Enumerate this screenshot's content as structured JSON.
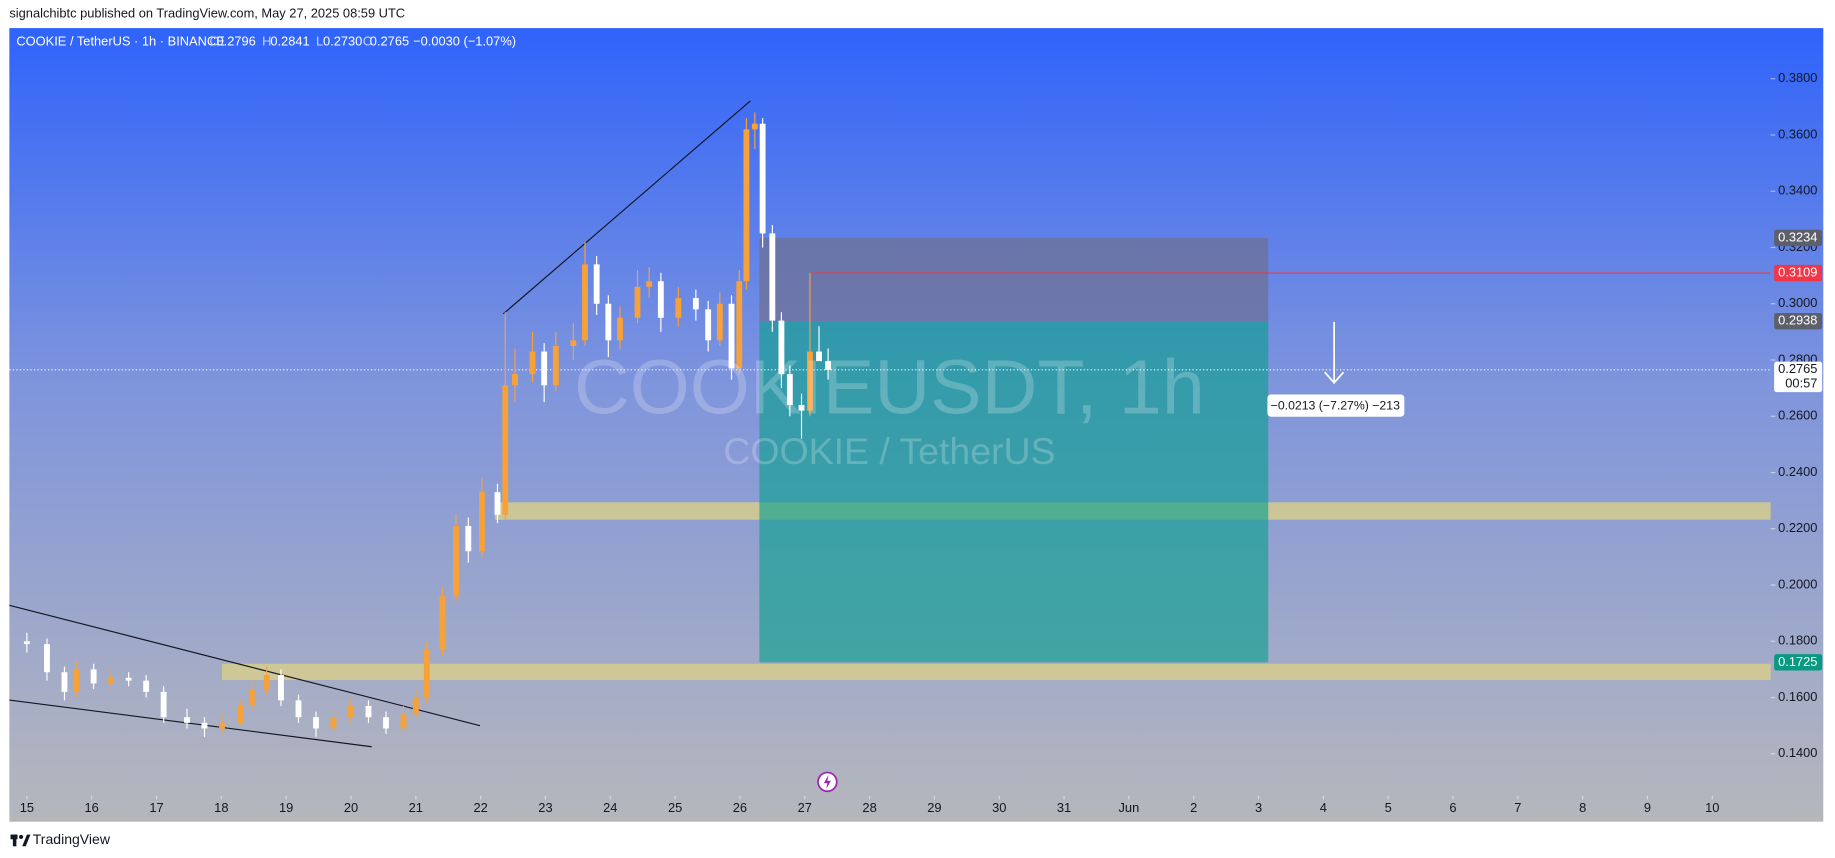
{
  "header": {
    "published": "signalchibtc published on TradingView.com, May 27, 2025 08:59 UTC"
  },
  "legend": {
    "symbol": "COOKIE / TetherUS · 1h · BINANCE",
    "o_label": "O",
    "open": "0.2796",
    "h_label": "H",
    "high": "0.2841",
    "l_label": "L",
    "low": "0.2730",
    "c_label": "C",
    "close": "0.2765",
    "change": "−0.0030 (−1.07%)"
  },
  "watermark": {
    "title": "COOKIEUSDT, 1h",
    "subtitle": "COOKIE / TetherUS"
  },
  "footer": {
    "brand": "TradingView"
  },
  "chart_data": {
    "type": "candlestick",
    "xlim": [
      -0.27,
      26.9
    ],
    "ylim": [
      0.125,
      0.398
    ],
    "xticks": [
      {
        "value": 0,
        "label": "15"
      },
      {
        "value": 1,
        "label": "16"
      },
      {
        "value": 2,
        "label": "17"
      },
      {
        "value": 3,
        "label": "18"
      },
      {
        "value": 4,
        "label": "19"
      },
      {
        "value": 5,
        "label": "20"
      },
      {
        "value": 6,
        "label": "21"
      },
      {
        "value": 7,
        "label": "22"
      },
      {
        "value": 8,
        "label": "23"
      },
      {
        "value": 9,
        "label": "24"
      },
      {
        "value": 10,
        "label": "25"
      },
      {
        "value": 11,
        "label": "26"
      },
      {
        "value": 12,
        "label": "27"
      },
      {
        "value": 13,
        "label": "28"
      },
      {
        "value": 14,
        "label": "29"
      },
      {
        "value": 15,
        "label": "30"
      },
      {
        "value": 16,
        "label": "31"
      },
      {
        "value": 17,
        "label": "Jun"
      },
      {
        "value": 18,
        "label": "2"
      },
      {
        "value": 19,
        "label": "3"
      },
      {
        "value": 20,
        "label": "4"
      },
      {
        "value": 21,
        "label": "5"
      },
      {
        "value": 22,
        "label": "6"
      },
      {
        "value": 23,
        "label": "7"
      },
      {
        "value": 24,
        "label": "8"
      },
      {
        "value": 25,
        "label": "9"
      },
      {
        "value": 26,
        "label": "10"
      }
    ],
    "yticks": [
      {
        "value": 0.14,
        "label": "0.1400"
      },
      {
        "value": 0.16,
        "label": "0.1600"
      },
      {
        "value": 0.18,
        "label": "0.1800"
      },
      {
        "value": 0.2,
        "label": "0.2000"
      },
      {
        "value": 0.22,
        "label": "0.2200"
      },
      {
        "value": 0.24,
        "label": "0.2400"
      },
      {
        "value": 0.26,
        "label": "0.2600"
      },
      {
        "value": 0.28,
        "label": "0.2800"
      },
      {
        "value": 0.3,
        "label": "0.3000"
      },
      {
        "value": 0.32,
        "label": "0.3200"
      },
      {
        "value": 0.34,
        "label": "0.3400"
      },
      {
        "value": 0.36,
        "label": "0.3600"
      },
      {
        "value": 0.38,
        "label": "0.3800"
      }
    ],
    "up_color": "#f7a13a",
    "down_color": "#ffffff",
    "x": [
      0,
      0.31,
      0.58,
      0.76,
      1.03,
      1.3,
      1.57,
      1.84,
      2.11,
      2.47,
      2.74,
      3.01,
      3.29,
      3.47,
      3.7,
      3.92,
      4.19,
      4.46,
      4.73,
      5,
      5.27,
      5.54,
      5.81,
      6,
      6.17,
      6.41,
      6.62,
      6.81,
      7.02,
      7.26,
      7.38,
      7.53,
      7.8,
      7.98,
      8.16,
      8.43,
      8.61,
      8.79,
      8.97,
      9.15,
      9.42,
      9.6,
      9.78,
      10.05,
      10.32,
      10.51,
      10.69,
      10.87,
      10.99,
      11.1,
      11.23,
      11.35,
      11.5,
      11.64,
      11.77,
      11.95,
      12.08,
      12.22,
      12.36
    ],
    "open": [
      0.18,
      0.179,
      0.169,
      0.162,
      0.17,
      0.165,
      0.167,
      0.166,
      0.162,
      0.153,
      0.151,
      0.149,
      0.151,
      0.157,
      0.163,
      0.168,
      0.159,
      0.153,
      0.149,
      0.153,
      0.157,
      0.153,
      0.149,
      0.154,
      0.16,
      0.177,
      0.196,
      0.221,
      0.212,
      0.233,
      0.225,
      0.271,
      0.275,
      0.283,
      0.271,
      0.285,
      0.287,
      0.314,
      0.3,
      0.287,
      0.295,
      0.306,
      0.308,
      0.295,
      0.302,
      0.298,
      0.287,
      0.3,
      0.277,
      0.308,
      0.362,
      0.364,
      0.325,
      0.294,
      0.275,
      0.264,
      0.262,
      0.283,
      0.2796
    ],
    "high": [
      0.183,
      0.181,
      0.171,
      0.173,
      0.172,
      0.17,
      0.169,
      0.168,
      0.164,
      0.156,
      0.153,
      0.154,
      0.159,
      0.166,
      0.171,
      0.17,
      0.161,
      0.155,
      0.156,
      0.16,
      0.159,
      0.155,
      0.157,
      0.163,
      0.18,
      0.199,
      0.225,
      0.224,
      0.238,
      0.236,
      0.297,
      0.284,
      0.29,
      0.286,
      0.29,
      0.293,
      0.322,
      0.317,
      0.303,
      0.299,
      0.312,
      0.313,
      0.311,
      0.306,
      0.305,
      0.301,
      0.304,
      0.303,
      0.312,
      0.366,
      0.368,
      0.366,
      0.328,
      0.297,
      0.278,
      0.268,
      0.311,
      0.292,
      0.2841
    ],
    "low": [
      0.176,
      0.166,
      0.159,
      0.16,
      0.163,
      0.163,
      0.164,
      0.16,
      0.151,
      0.149,
      0.146,
      0.147,
      0.15,
      0.155,
      0.161,
      0.157,
      0.151,
      0.146,
      0.148,
      0.151,
      0.151,
      0.147,
      0.148,
      0.152,
      0.158,
      0.175,
      0.194,
      0.208,
      0.21,
      0.222,
      0.223,
      0.265,
      0.272,
      0.265,
      0.269,
      0.28,
      0.285,
      0.296,
      0.281,
      0.284,
      0.293,
      0.302,
      0.29,
      0.292,
      0.294,
      0.283,
      0.285,
      0.273,
      0.275,
      0.305,
      0.355,
      0.32,
      0.29,
      0.27,
      0.26,
      0.252,
      0.26,
      0.28,
      0.273
    ],
    "close": [
      0.179,
      0.169,
      0.162,
      0.17,
      0.165,
      0.167,
      0.166,
      0.162,
      0.153,
      0.151,
      0.149,
      0.151,
      0.157,
      0.163,
      0.168,
      0.159,
      0.153,
      0.149,
      0.153,
      0.157,
      0.153,
      0.149,
      0.154,
      0.16,
      0.177,
      0.196,
      0.221,
      0.212,
      0.233,
      0.225,
      0.271,
      0.275,
      0.283,
      0.271,
      0.285,
      0.287,
      0.314,
      0.3,
      0.287,
      0.295,
      0.306,
      0.308,
      0.295,
      0.302,
      0.298,
      0.287,
      0.3,
      0.277,
      0.308,
      0.362,
      0.364,
      0.325,
      0.294,
      0.275,
      0.264,
      0.262,
      0.283,
      0.2796,
      0.2765
    ],
    "trendlines": [
      {
        "x": [
          7.35,
          11.16
        ],
        "y": [
          0.2964,
          0.3721
        ]
      },
      {
        "x": [
          -0.27,
          6.99
        ],
        "y": [
          0.1928,
          0.15
        ]
      },
      {
        "x": [
          -0.27,
          5.32
        ],
        "y": [
          0.1591,
          0.1425
        ]
      }
    ],
    "zones": [
      {
        "x_start": 7.22,
        "y": [
          0.2232,
          0.2294
        ],
        "color": "#d9d08a"
      },
      {
        "x_start": 3.01,
        "y": [
          0.1662,
          0.172
        ],
        "color": "#d9d08a"
      }
    ],
    "position": {
      "x": [
        11.3,
        19.15
      ],
      "stop": 0.3234,
      "entry": 0.2938,
      "target": 0.1725,
      "measure": "−0.0213 (−7.27%) −213"
    },
    "level": {
      "x_start": 12.1,
      "price": 0.3109,
      "color": "#f23645"
    },
    "last_price": {
      "value": 0.2765,
      "label": "0.2765",
      "countdown": "00:57"
    }
  }
}
